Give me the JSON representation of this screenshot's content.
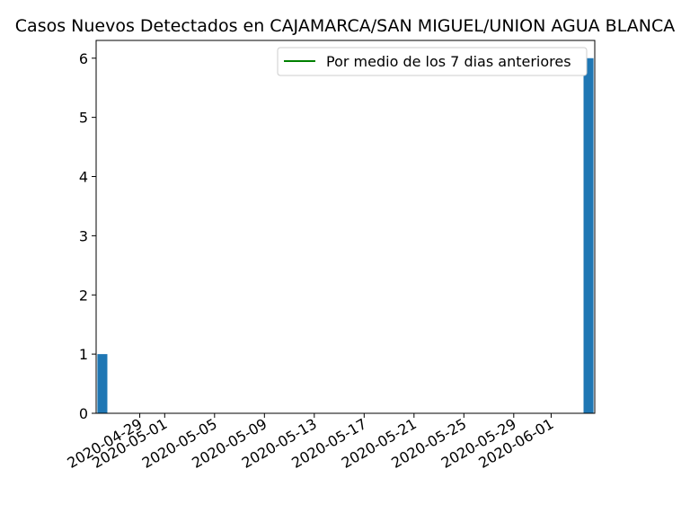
{
  "chart_data": {
    "type": "bar",
    "title": "Casos Nuevos Detectados en CAJAMARCA/SAN MIGUEL/UNION AGUA BLANCA",
    "xlabel": "",
    "ylabel": "",
    "x_start": "2020-04-26",
    "x_end": "2020-06-04",
    "ylim": [
      0,
      6.3
    ],
    "yticks": [
      0,
      1,
      2,
      3,
      4,
      5,
      6
    ],
    "xticks": [
      "2020-04-29",
      "2020-05-01",
      "2020-05-05",
      "2020-05-09",
      "2020-05-13",
      "2020-05-17",
      "2020-05-21",
      "2020-05-25",
      "2020-05-29",
      "2020-06-01"
    ],
    "bars": [
      {
        "date": "2020-04-26",
        "value": 1
      },
      {
        "date": "2020-06-04",
        "value": 6
      }
    ],
    "series": [
      {
        "name": "Por medio de los 7 dias anteriores",
        "color": "#008000",
        "values": []
      }
    ],
    "legend": {
      "position": "top-right",
      "label": "Por medio de los 7 dias anteriores"
    },
    "bar_color": "#1f77b4",
    "grid": false
  }
}
